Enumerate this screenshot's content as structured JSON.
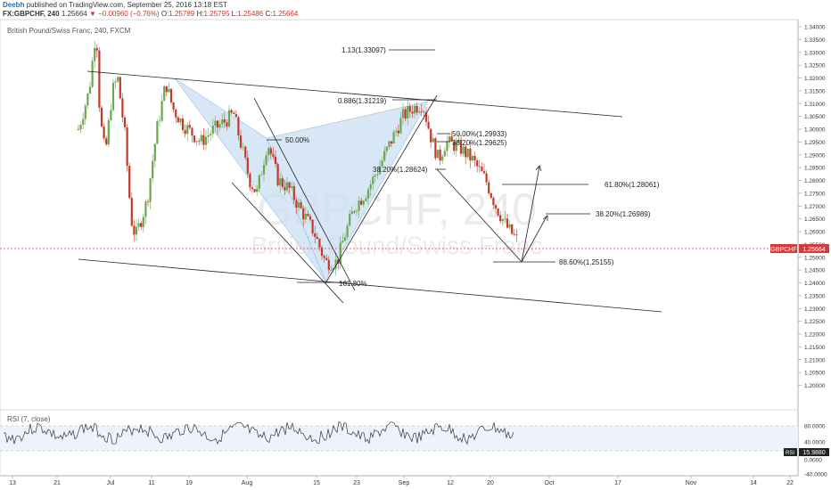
{
  "header": {
    "author": "Deebh",
    "publish_text": "published on TradingView.com, September 25, 2016 13:18 EST",
    "symbol": "FX:GBPCHF, 240",
    "last": "1.25664",
    "change": "−0.00960 (−0.76%)",
    "ohlc": [
      {
        "label": "O:",
        "value": "1.25789"
      },
      {
        "label": "H:",
        "value": "1.25795"
      },
      {
        "label": "L:",
        "value": "1.25486"
      },
      {
        "label": "C:",
        "value": "1.25664"
      }
    ]
  },
  "chart": {
    "legend": "British Pound/Swiss Franc, 240, FXCM",
    "watermark_symbol": "GBPCHF, 240",
    "watermark_name": "British Pound/Swiss Franc",
    "price_tag": "GBPCHF",
    "price_value": "1.25664",
    "colors": {
      "up": "#6aa84f",
      "down": "#c0392b",
      "harmonic_fill": "#c9dff1",
      "price_line": "#d63b3b"
    },
    "annotations": [
      {
        "id": "fib-113",
        "text": "1.13(1.33097)"
      },
      {
        "id": "fib-0886",
        "text": "0.886(1.31219)"
      },
      {
        "id": "fib-50-xab",
        "text": "50.00%"
      },
      {
        "id": "fib-50-bc",
        "text": "50.00%(1.29933)"
      },
      {
        "id": "fib-382-bc",
        "text": "38.20%(1.29625)"
      },
      {
        "id": "fib-382-ab",
        "text": "38.20%(1.28624)"
      },
      {
        "id": "fib-618-target",
        "text": "61.80%(1.28061)"
      },
      {
        "id": "fib-382-target",
        "text": "38.20%(1.26989)"
      },
      {
        "id": "fib-886-d",
        "text": "88.60%(1.25155)"
      },
      {
        "id": "fib-1618",
        "text": "161.80%"
      }
    ]
  },
  "rsi": {
    "legend": "RSI (7, close)",
    "tag": "RSI",
    "value": "15.9880",
    "levels": [
      80,
      40
    ]
  },
  "chart_data": {
    "type": "candlestick",
    "title": "British Pound/Swiss Franc, 240, FXCM",
    "ylim": [
      1.195,
      1.345
    ],
    "y_ticks": [
      "1.34000",
      "1.33500",
      "1.33000",
      "1.32500",
      "1.32000",
      "1.31500",
      "1.31000",
      "1.30500",
      "1.30000",
      "1.29500",
      "1.29000",
      "1.28500",
      "1.28000",
      "1.27500",
      "1.27000",
      "1.26500",
      "1.26000",
      "1.25500",
      "1.25000",
      "1.24500",
      "1.24000",
      "1.23500",
      "1.23000",
      "1.22500",
      "1.22000",
      "1.21500",
      "1.21000",
      "1.20500",
      "1.20000"
    ],
    "x_ticks": [
      "13",
      "21",
      "Jul",
      "11",
      "19",
      "Aug",
      "15",
      "23",
      "Sep",
      "12",
      "20",
      "Oct",
      "17",
      "Nov",
      "14",
      "22"
    ],
    "rsi_ticks": [
      "80.0000",
      "40.0000",
      "0.0000",
      "-40.0000"
    ],
    "price_path": [
      [
        "Jun 17",
        1.3
      ],
      [
        "Jun 21",
        1.315
      ],
      [
        "Jun 23",
        1.34
      ],
      [
        "Jun 24",
        1.305
      ],
      [
        "Jun 27",
        1.29
      ],
      [
        "Jun 29",
        1.315
      ],
      [
        "Jul 1",
        1.32
      ],
      [
        "Jul 4",
        1.298
      ],
      [
        "Jul 6",
        1.265
      ],
      [
        "Jul 8",
        1.258
      ],
      [
        "Jul 11",
        1.272
      ],
      [
        "Jul 13",
        1.3
      ],
      [
        "Jul 15",
        1.318
      ],
      [
        "Jul 18",
        1.308
      ],
      [
        "Jul 20",
        1.302
      ],
      [
        "Jul 22",
        1.295
      ],
      [
        "Jul 25",
        1.3
      ],
      [
        "Jul 27",
        1.303
      ],
      [
        "Jul 29",
        1.306
      ],
      [
        "Aug 1",
        1.28
      ],
      [
        "Aug 3",
        1.275
      ],
      [
        "Aug 5",
        1.295
      ],
      [
        "Aug 8",
        1.28
      ],
      [
        "Aug 10",
        1.277
      ],
      [
        "Aug 12",
        1.27
      ],
      [
        "Aug 15",
        1.26
      ],
      [
        "Aug 17",
        1.248
      ],
      [
        "Aug 19",
        1.248
      ],
      [
        "Aug 22",
        1.258
      ],
      [
        "Aug 24",
        1.27
      ],
      [
        "Aug 26",
        1.275
      ],
      [
        "Aug 29",
        1.285
      ],
      [
        "Aug 31",
        1.295
      ],
      [
        "Sep 2",
        1.305
      ],
      [
        "Sep 5",
        1.308
      ],
      [
        "Sep 7",
        1.31
      ],
      [
        "Sep 8",
        1.296
      ],
      [
        "Sep 9",
        1.288
      ],
      [
        "Sep 12",
        1.295
      ],
      [
        "Sep 14",
        1.293
      ],
      [
        "Sep 16",
        1.288
      ],
      [
        "Sep 19",
        1.28
      ],
      [
        "Sep 21",
        1.27
      ],
      [
        "Sep 23",
        1.262
      ],
      [
        "Sep 25",
        1.2566
      ]
    ]
  }
}
